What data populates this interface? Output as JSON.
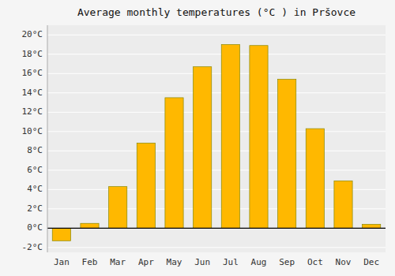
{
  "chart_data": {
    "type": "bar",
    "title": "Average monthly temperatures (°C ) in Pršovce",
    "categories": [
      "Jan",
      "Feb",
      "Mar",
      "Apr",
      "May",
      "Jun",
      "Jul",
      "Aug",
      "Sep",
      "Oct",
      "Nov",
      "Dec"
    ],
    "values": [
      -1.3,
      0.5,
      4.3,
      8.8,
      13.5,
      16.7,
      19.0,
      18.9,
      15.4,
      10.3,
      4.9,
      0.4
    ],
    "color": "#FFB800",
    "ylim": [
      -2.5,
      21.0
    ],
    "yticks": [
      {
        "value": -2,
        "label": "-2°C"
      },
      {
        "value": 0,
        "label": "0°C"
      },
      {
        "value": 2,
        "label": "2°C"
      },
      {
        "value": 4,
        "label": "4°C"
      },
      {
        "value": 6,
        "label": "6°C"
      },
      {
        "value": 8,
        "label": "8°C"
      },
      {
        "value": 10,
        "label": "10°C"
      },
      {
        "value": 12,
        "label": "12°C"
      },
      {
        "value": 14,
        "label": "14°C"
      },
      {
        "value": 16,
        "label": "16°C"
      },
      {
        "value": 18,
        "label": "18°C"
      },
      {
        "value": 20,
        "label": "20°C"
      }
    ],
    "grid": true
  }
}
